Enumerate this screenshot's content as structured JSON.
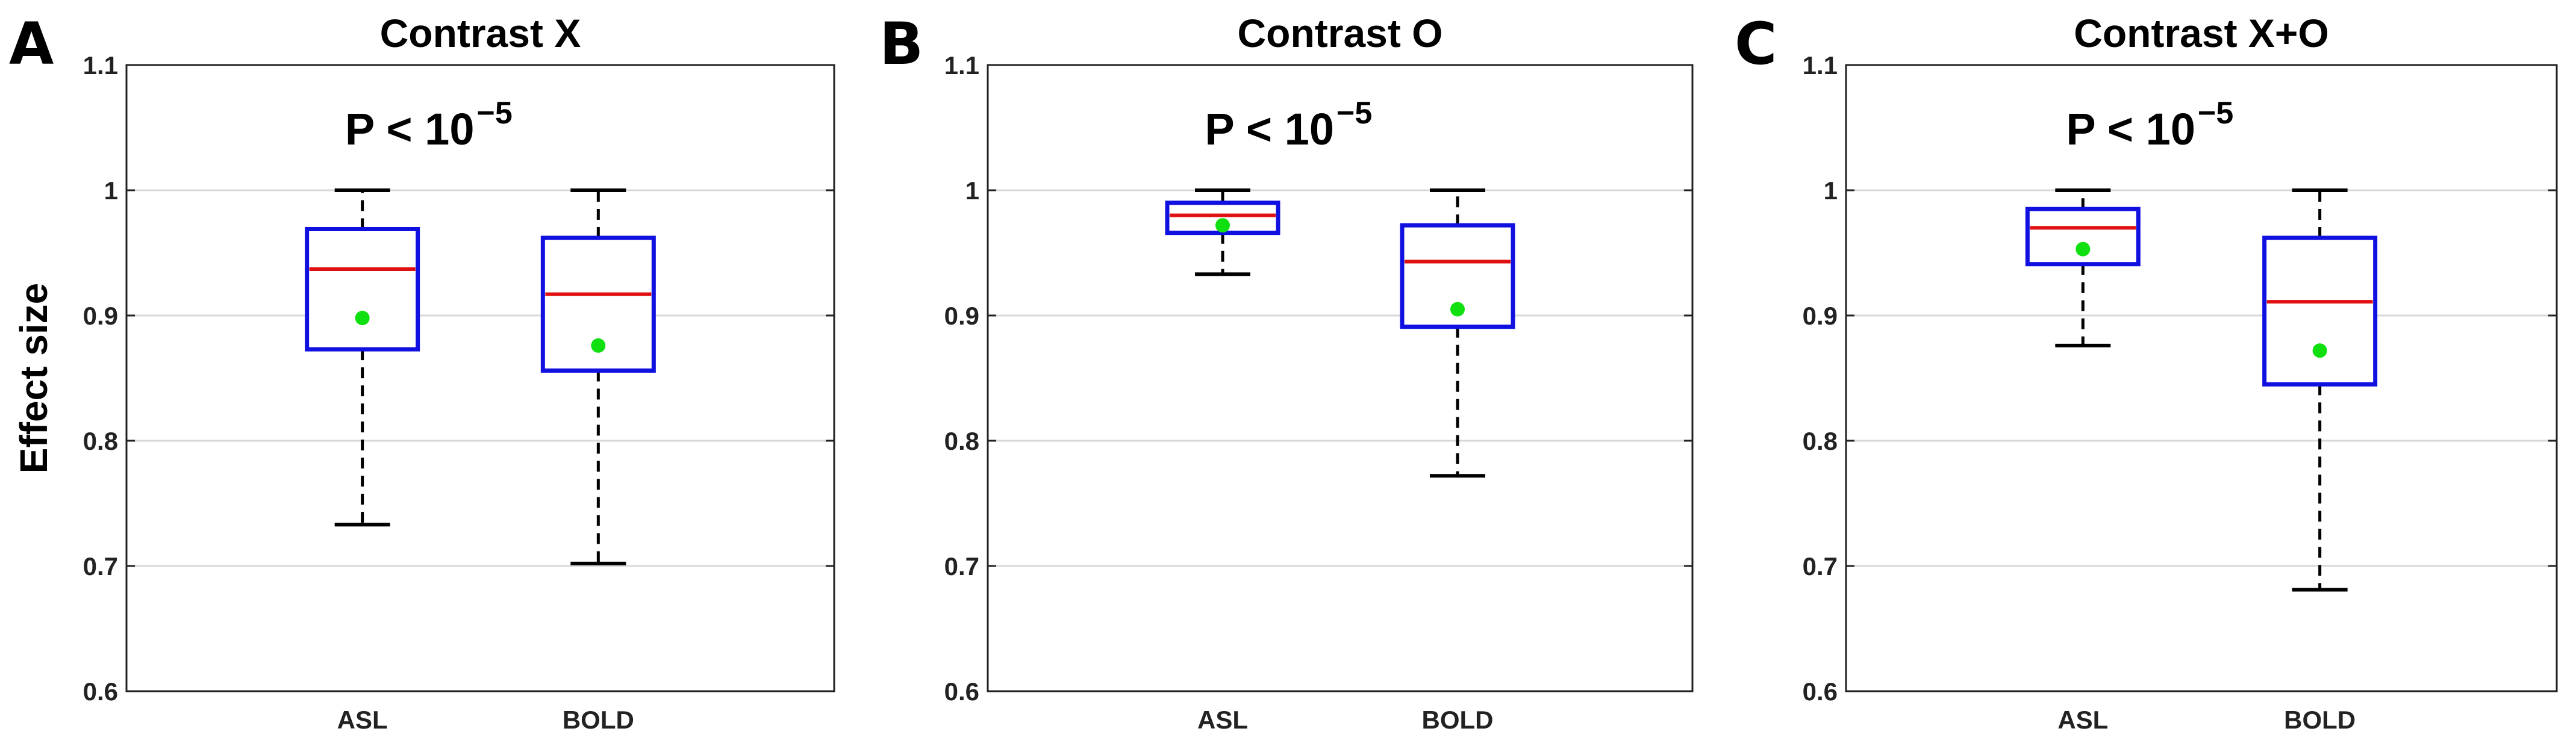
{
  "colors": {
    "box": "#1010e0",
    "median": "#e01010",
    "mean": "#10e010",
    "whisker": "#000000",
    "grid": "#d8d8d8",
    "axes": "#222222"
  },
  "chart_data": [
    {
      "type": "boxplot",
      "panel_label": "A",
      "title": "Contrast X",
      "ylabel": "Effect size",
      "xlabel": "",
      "ylim": [
        0.6,
        1.1
      ],
      "yticks": [
        "0.6",
        "0.7",
        "0.8",
        "0.9",
        "1",
        "1.1"
      ],
      "ytick_values": [
        0.6,
        0.7,
        0.8,
        0.9,
        1.0,
        1.1
      ],
      "grid": true,
      "annotation": {
        "base": "P < 10",
        "exponent": "−5"
      },
      "categories": [
        "ASL",
        "BOLD"
      ],
      "boxes": [
        {
          "name": "ASL",
          "whisker_low": 0.733,
          "q1": 0.873,
          "median": 0.937,
          "q3": 0.969,
          "whisker_high": 1.0,
          "mean": 0.898
        },
        {
          "name": "BOLD",
          "whisker_low": 0.702,
          "q1": 0.856,
          "median": 0.917,
          "q3": 0.962,
          "whisker_high": 1.0,
          "mean": 0.876
        }
      ]
    },
    {
      "type": "boxplot",
      "panel_label": "B",
      "title": "Contrast O",
      "ylabel": "",
      "xlabel": "",
      "ylim": [
        0.6,
        1.1
      ],
      "yticks": [
        "0.6",
        "0.7",
        "0.8",
        "0.9",
        "1",
        "1.1"
      ],
      "ytick_values": [
        0.6,
        0.7,
        0.8,
        0.9,
        1.0,
        1.1
      ],
      "grid": true,
      "annotation": {
        "base": "P < 10",
        "exponent": "−5"
      },
      "categories": [
        "ASL",
        "BOLD"
      ],
      "boxes": [
        {
          "name": "ASL",
          "whisker_low": 0.933,
          "q1": 0.966,
          "median": 0.98,
          "q3": 0.99,
          "whisker_high": 1.0,
          "mean": 0.972
        },
        {
          "name": "BOLD",
          "whisker_low": 0.772,
          "q1": 0.891,
          "median": 0.943,
          "q3": 0.972,
          "whisker_high": 1.0,
          "mean": 0.905
        }
      ]
    },
    {
      "type": "boxplot",
      "panel_label": "C",
      "title": "Contrast X+O",
      "ylabel": "",
      "xlabel": "",
      "ylim": [
        0.6,
        1.1
      ],
      "yticks": [
        "0.6",
        "0.7",
        "0.8",
        "0.9",
        "1",
        "1.1"
      ],
      "ytick_values": [
        0.6,
        0.7,
        0.8,
        0.9,
        1.0,
        1.1
      ],
      "grid": true,
      "annotation": {
        "base": "P < 10",
        "exponent": "−5"
      },
      "categories": [
        "ASL",
        "BOLD"
      ],
      "boxes": [
        {
          "name": "ASL",
          "whisker_low": 0.876,
          "q1": 0.941,
          "median": 0.97,
          "q3": 0.985,
          "whisker_high": 1.0,
          "mean": 0.953
        },
        {
          "name": "BOLD",
          "whisker_low": 0.681,
          "q1": 0.845,
          "median": 0.911,
          "q3": 0.962,
          "whisker_high": 1.0,
          "mean": 0.872
        }
      ]
    }
  ]
}
